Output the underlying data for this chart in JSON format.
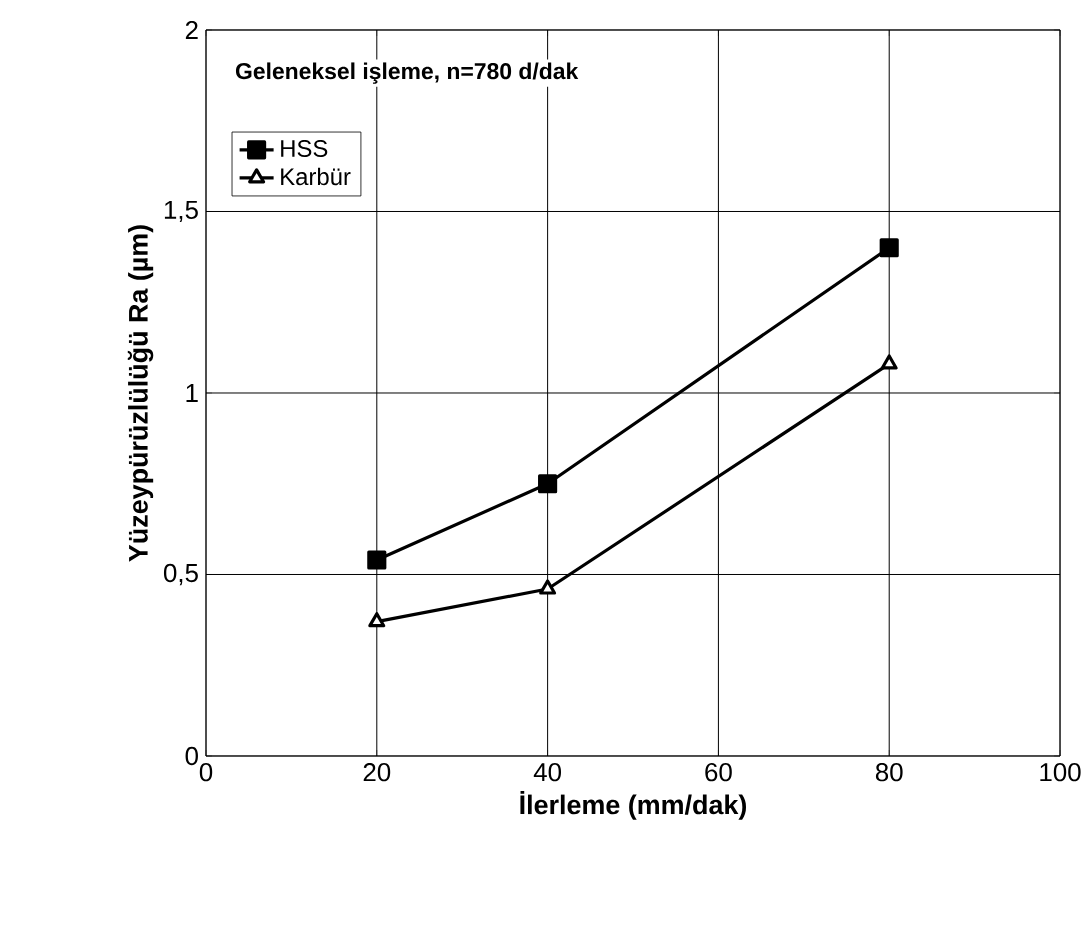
{
  "chart_data": {
    "type": "line",
    "xlabel": "İlerleme (mm/dak)",
    "ylabel": "Yüzeypürüzlülüğü Ra (µm)",
    "legend_title": "Geleneksel işleme, n=780 d/dak",
    "x": [
      20,
      40,
      80
    ],
    "series": [
      {
        "name": "HSS",
        "color": "#000000",
        "marker": "square",
        "values": [
          0.54,
          0.75,
          1.4
        ]
      },
      {
        "name": "Karbür",
        "color": "#000000",
        "marker": "triangle",
        "values": [
          0.37,
          0.46,
          1.08
        ]
      }
    ],
    "xlim": [
      0,
      100
    ],
    "xticks": [
      0,
      20,
      40,
      60,
      80,
      100
    ],
    "ylim": [
      0,
      2
    ],
    "yticks": [
      0,
      {
        "value": 0.5,
        "label": "0,5"
      },
      1,
      {
        "value": 1.5,
        "label": "1,5"
      },
      2
    ],
    "grid": true,
    "legend": "top left",
    "line_style": "solid"
  }
}
